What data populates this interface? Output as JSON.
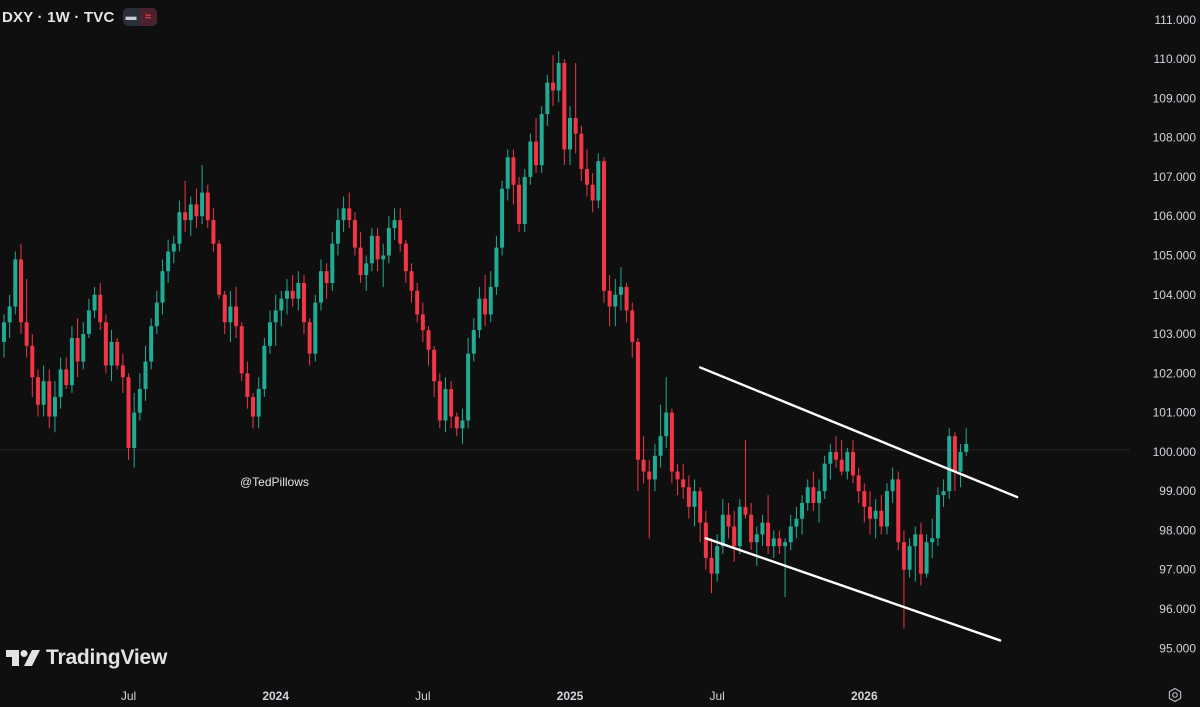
{
  "header": {
    "symbol_title": "DXY · 1W · TVC",
    "pill_left_icon": "line-icon",
    "pill_right_icon": "wave-icon"
  },
  "watermark": "@TedPillows",
  "brand": "TradingView",
  "colors": {
    "background": "#0f0f0f",
    "up": "#22ab94",
    "down": "#f23645",
    "axis_text": "#d1d4dc",
    "trendline": "#ffffff"
  },
  "chart_data": {
    "type": "candlestick",
    "symbol": "DXY",
    "interval": "1W",
    "source": "TVC",
    "ylim": [
      94.6,
      111.3
    ],
    "y_ticks": [
      "111.000",
      "110.000",
      "109.000",
      "108.000",
      "107.000",
      "106.000",
      "105.000",
      "104.000",
      "103.000",
      "102.000",
      "101.000",
      "100.000",
      "99.000",
      "98.000",
      "97.000",
      "96.000",
      "95.000"
    ],
    "x_ticks": [
      {
        "label": "Jul",
        "index": 22
      },
      {
        "label": "2024",
        "index": 48
      },
      {
        "label": "Jul",
        "index": 74
      },
      {
        "label": "2025",
        "index": 100
      },
      {
        "label": "Jul",
        "index": 126
      },
      {
        "label": "2026",
        "index": 152
      }
    ],
    "candles": [
      [
        102.8,
        103.5,
        102.4,
        103.3
      ],
      [
        103.3,
        104.0,
        102.9,
        103.7
      ],
      [
        103.7,
        105.1,
        103.5,
        104.9
      ],
      [
        104.9,
        105.3,
        103.0,
        103.3
      ],
      [
        103.3,
        104.4,
        102.4,
        102.7
      ],
      [
        102.7,
        103.0,
        101.4,
        101.9
      ],
      [
        101.9,
        102.1,
        100.9,
        101.2
      ],
      [
        101.2,
        102.2,
        100.9,
        101.8
      ],
      [
        101.8,
        102.1,
        100.6,
        100.9
      ],
      [
        100.9,
        101.8,
        100.5,
        101.4
      ],
      [
        101.4,
        102.4,
        101.1,
        102.1
      ],
      [
        102.1,
        102.4,
        101.6,
        101.7
      ],
      [
        101.7,
        103.2,
        101.5,
        102.9
      ],
      [
        102.9,
        103.4,
        101.9,
        102.3
      ],
      [
        102.3,
        103.3,
        102.1,
        103.0
      ],
      [
        103.0,
        103.9,
        102.9,
        103.6
      ],
      [
        103.6,
        104.2,
        103.4,
        104.0
      ],
      [
        104.0,
        104.3,
        103.1,
        103.3
      ],
      [
        103.3,
        103.5,
        102.0,
        102.2
      ],
      [
        102.2,
        103.1,
        101.8,
        102.8
      ],
      [
        102.8,
        102.9,
        102.1,
        102.2
      ],
      [
        102.2,
        102.5,
        101.5,
        101.9
      ],
      [
        101.9,
        102.0,
        99.8,
        100.1
      ],
      [
        100.1,
        101.5,
        99.6,
        101.0
      ],
      [
        101.0,
        102.0,
        100.8,
        101.6
      ],
      [
        101.6,
        102.7,
        101.3,
        102.3
      ],
      [
        102.3,
        103.4,
        102.1,
        103.2
      ],
      [
        103.2,
        104.1,
        103.0,
        103.8
      ],
      [
        103.8,
        104.9,
        103.5,
        104.6
      ],
      [
        104.6,
        105.4,
        104.3,
        105.1
      ],
      [
        105.1,
        105.5,
        104.8,
        105.3
      ],
      [
        105.3,
        106.4,
        105.1,
        106.1
      ],
      [
        106.1,
        106.9,
        105.6,
        105.9
      ],
      [
        105.9,
        106.5,
        105.5,
        106.3
      ],
      [
        106.3,
        106.7,
        105.7,
        106.0
      ],
      [
        106.0,
        107.3,
        105.8,
        106.6
      ],
      [
        106.6,
        106.8,
        105.7,
        105.9
      ],
      [
        105.9,
        106.2,
        105.1,
        105.3
      ],
      [
        105.3,
        105.4,
        103.9,
        104.0
      ],
      [
        104.0,
        104.1,
        103.0,
        103.3
      ],
      [
        103.3,
        104.1,
        102.8,
        103.7
      ],
      [
        103.7,
        104.2,
        102.9,
        103.2
      ],
      [
        103.2,
        103.3,
        101.8,
        102.0
      ],
      [
        102.0,
        102.3,
        101.1,
        101.4
      ],
      [
        101.4,
        101.5,
        100.6,
        100.9
      ],
      [
        100.9,
        101.9,
        100.6,
        101.6
      ],
      [
        101.6,
        102.9,
        101.4,
        102.7
      ],
      [
        102.7,
        103.6,
        102.5,
        103.3
      ],
      [
        103.3,
        104.0,
        102.7,
        103.6
      ],
      [
        103.6,
        104.1,
        103.2,
        103.9
      ],
      [
        103.9,
        104.4,
        103.5,
        104.1
      ],
      [
        104.1,
        104.5,
        103.7,
        103.9
      ],
      [
        103.9,
        104.6,
        103.6,
        104.3
      ],
      [
        104.3,
        104.5,
        103.0,
        103.3
      ],
      [
        103.3,
        103.4,
        102.2,
        102.5
      ],
      [
        102.5,
        104.0,
        102.3,
        103.8
      ],
      [
        103.8,
        104.9,
        103.6,
        104.6
      ],
      [
        104.6,
        104.8,
        103.9,
        104.3
      ],
      [
        104.3,
        105.6,
        104.1,
        105.3
      ],
      [
        105.3,
        106.2,
        105.0,
        105.9
      ],
      [
        105.9,
        106.5,
        105.6,
        106.2
      ],
      [
        106.2,
        106.6,
        105.7,
        105.9
      ],
      [
        105.9,
        106.1,
        105.0,
        105.2
      ],
      [
        105.2,
        105.6,
        104.3,
        104.5
      ],
      [
        104.5,
        105.0,
        104.1,
        104.8
      ],
      [
        104.8,
        105.7,
        104.6,
        105.5
      ],
      [
        105.5,
        105.7,
        104.6,
        104.9
      ],
      [
        104.9,
        105.3,
        104.2,
        105.0
      ],
      [
        105.0,
        106.0,
        104.8,
        105.7
      ],
      [
        105.7,
        106.2,
        105.4,
        105.9
      ],
      [
        105.9,
        106.2,
        105.1,
        105.3
      ],
      [
        105.3,
        105.4,
        104.3,
        104.6
      ],
      [
        104.6,
        104.8,
        103.8,
        104.1
      ],
      [
        104.1,
        104.3,
        103.3,
        103.5
      ],
      [
        103.5,
        103.8,
        102.8,
        103.1
      ],
      [
        103.1,
        103.2,
        102.2,
        102.6
      ],
      [
        102.6,
        102.7,
        101.4,
        101.8
      ],
      [
        101.8,
        102.0,
        100.6,
        100.8
      ],
      [
        100.8,
        101.9,
        100.5,
        101.6
      ],
      [
        101.6,
        101.8,
        100.6,
        100.9
      ],
      [
        100.9,
        101.0,
        100.4,
        100.6
      ],
      [
        100.6,
        101.1,
        100.2,
        100.8
      ],
      [
        100.8,
        102.9,
        100.6,
        102.5
      ],
      [
        102.5,
        103.4,
        102.3,
        103.1
      ],
      [
        103.1,
        104.2,
        102.9,
        103.9
      ],
      [
        103.9,
        104.5,
        103.2,
        103.5
      ],
      [
        103.5,
        104.6,
        103.3,
        104.2
      ],
      [
        104.2,
        105.5,
        104.0,
        105.2
      ],
      [
        105.2,
        106.9,
        105.0,
        106.7
      ],
      [
        106.7,
        107.7,
        106.4,
        107.5
      ],
      [
        107.5,
        107.7,
        106.3,
        106.8
      ],
      [
        106.8,
        107.0,
        105.6,
        105.8
      ],
      [
        105.8,
        107.2,
        105.6,
        107.0
      ],
      [
        107.0,
        108.1,
        106.8,
        107.9
      ],
      [
        107.9,
        108.5,
        107.1,
        107.3
      ],
      [
        107.3,
        108.8,
        107.1,
        108.6
      ],
      [
        108.6,
        109.6,
        108.3,
        109.4
      ],
      [
        109.4,
        110.1,
        108.8,
        109.2
      ],
      [
        109.2,
        110.2,
        108.9,
        109.9
      ],
      [
        109.9,
        110.0,
        107.3,
        107.7
      ],
      [
        107.7,
        108.8,
        107.3,
        108.5
      ],
      [
        108.5,
        109.9,
        107.6,
        108.1
      ],
      [
        108.1,
        108.3,
        106.9,
        107.2
      ],
      [
        107.2,
        107.7,
        106.5,
        106.8
      ],
      [
        106.8,
        107.1,
        106.1,
        106.4
      ],
      [
        106.4,
        107.6,
        106.2,
        107.4
      ],
      [
        107.4,
        107.5,
        103.8,
        104.1
      ],
      [
        104.1,
        104.5,
        103.2,
        103.7
      ],
      [
        103.7,
        104.4,
        103.2,
        104.0
      ],
      [
        104.0,
        104.7,
        103.6,
        104.2
      ],
      [
        104.2,
        104.3,
        103.3,
        103.6
      ],
      [
        103.6,
        103.8,
        102.4,
        102.8
      ],
      [
        102.8,
        102.9,
        99.0,
        99.8
      ],
      [
        99.8,
        100.4,
        99.2,
        99.5
      ],
      [
        99.5,
        99.8,
        97.8,
        99.3
      ],
      [
        99.3,
        100.2,
        99.0,
        99.9
      ],
      [
        99.9,
        101.2,
        99.6,
        100.4
      ],
      [
        100.4,
        101.9,
        100.1,
        101.0
      ],
      [
        101.0,
        101.1,
        99.2,
        99.5
      ],
      [
        99.5,
        99.7,
        98.9,
        99.3
      ],
      [
        99.3,
        99.7,
        98.8,
        99.1
      ],
      [
        99.1,
        99.4,
        98.3,
        98.6
      ],
      [
        98.6,
        99.3,
        98.1,
        99.0
      ],
      [
        99.0,
        99.1,
        97.7,
        98.2
      ],
      [
        98.2,
        98.5,
        97.0,
        97.3
      ],
      [
        97.3,
        97.8,
        96.4,
        96.9
      ],
      [
        96.9,
        97.9,
        96.7,
        97.6
      ],
      [
        97.6,
        98.8,
        97.4,
        98.4
      ],
      [
        98.4,
        98.7,
        97.8,
        98.1
      ],
      [
        98.1,
        98.5,
        97.2,
        97.6
      ],
      [
        97.6,
        98.8,
        97.4,
        98.6
      ],
      [
        98.6,
        100.3,
        98.3,
        98.4
      ],
      [
        98.4,
        98.7,
        97.5,
        97.7
      ],
      [
        97.7,
        98.1,
        97.1,
        97.9
      ],
      [
        97.9,
        98.4,
        97.6,
        98.2
      ],
      [
        98.2,
        98.9,
        97.4,
        97.6
      ],
      [
        97.6,
        98.0,
        97.3,
        97.8
      ],
      [
        97.8,
        98.0,
        97.4,
        97.6
      ],
      [
        97.6,
        97.8,
        96.3,
        97.7
      ],
      [
        97.7,
        98.4,
        97.5,
        98.1
      ],
      [
        98.1,
        98.6,
        97.8,
        98.3
      ],
      [
        98.3,
        98.9,
        97.9,
        98.7
      ],
      [
        98.7,
        99.3,
        98.5,
        99.1
      ],
      [
        99.1,
        99.5,
        98.5,
        98.7
      ],
      [
        98.7,
        99.3,
        98.2,
        99.0
      ],
      [
        99.0,
        99.9,
        98.8,
        99.7
      ],
      [
        99.7,
        100.2,
        99.3,
        100.0
      ],
      [
        100.0,
        100.4,
        99.6,
        99.8
      ],
      [
        99.8,
        100.3,
        99.4,
        99.5
      ],
      [
        99.5,
        100.1,
        99.3,
        100.0
      ],
      [
        100.0,
        100.3,
        99.2,
        99.4
      ],
      [
        99.4,
        99.6,
        98.7,
        99.0
      ],
      [
        99.0,
        99.2,
        98.2,
        98.6
      ],
      [
        98.6,
        99.0,
        97.9,
        98.3
      ],
      [
        98.3,
        98.8,
        97.8,
        98.5
      ],
      [
        98.5,
        98.9,
        97.9,
        98.1
      ],
      [
        98.1,
        99.2,
        97.9,
        99.0
      ],
      [
        99.0,
        99.6,
        98.7,
        99.3
      ],
      [
        99.3,
        99.5,
        97.5,
        97.7
      ],
      [
        97.7,
        98.0,
        95.5,
        97.0
      ],
      [
        97.0,
        97.8,
        96.8,
        97.6
      ],
      [
        97.6,
        98.1,
        96.7,
        97.9
      ],
      [
        97.9,
        98.2,
        96.6,
        96.9
      ],
      [
        96.9,
        97.9,
        96.8,
        97.7
      ],
      [
        97.7,
        98.3,
        97.3,
        97.8
      ],
      [
        97.8,
        99.1,
        97.6,
        98.9
      ],
      [
        98.9,
        99.3,
        98.6,
        99.0
      ],
      [
        99.0,
        100.6,
        98.8,
        100.4
      ],
      [
        100.4,
        100.5,
        99.0,
        99.5
      ],
      [
        99.5,
        100.2,
        99.1,
        100.0
      ],
      [
        100.0,
        100.6,
        99.9,
        100.2
      ]
    ],
    "trendlines": [
      {
        "name": "upper",
        "from": {
          "index": 123,
          "value": 102.15
        },
        "to": {
          "index": 179,
          "value": 98.85
        }
      },
      {
        "name": "lower",
        "from": {
          "index": 124,
          "value": 97.8
        },
        "to": {
          "index": 176,
          "value": 95.2
        }
      }
    ]
  }
}
